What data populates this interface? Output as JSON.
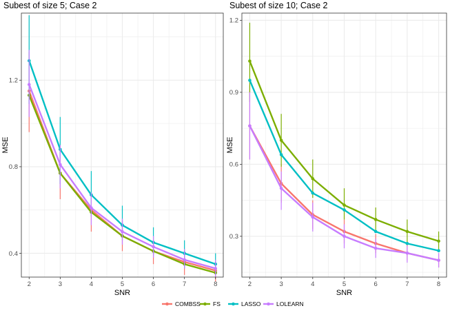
{
  "chart_data": [
    {
      "type": "line",
      "title": "Subest of size 5; Case 2",
      "xlabel": "SNR",
      "ylabel": "MSE",
      "x": [
        2,
        3,
        4,
        5,
        6,
        7,
        8
      ],
      "xlim": [
        1.75,
        8.25
      ],
      "ylim": [
        0.29,
        1.51
      ],
      "yticks": [
        0.4,
        0.8,
        1.2
      ],
      "ytick_labels": [
        "0.4",
        "0.8",
        "1.2"
      ],
      "grid": true,
      "series": [
        {
          "name": "COMBSS",
          "values": [
            1.15,
            0.77,
            0.6,
            0.48,
            0.41,
            0.36,
            0.32
          ],
          "err_low": [
            0.96,
            0.65,
            0.5,
            0.41,
            0.35,
            0.3,
            0.27
          ],
          "err_high": [
            1.33,
            0.88,
            0.68,
            0.55,
            0.46,
            0.41,
            0.36
          ]
        },
        {
          "name": "FS",
          "values": [
            1.13,
            0.77,
            0.59,
            0.48,
            0.41,
            0.35,
            0.31
          ],
          "err_low": [
            1.13,
            0.77,
            0.59,
            0.48,
            0.41,
            0.35,
            0.31
          ],
          "err_high": [
            1.13,
            0.77,
            0.59,
            0.48,
            0.41,
            0.35,
            0.31
          ]
        },
        {
          "name": "LASSO",
          "values": [
            1.29,
            0.88,
            0.67,
            0.53,
            0.45,
            0.4,
            0.35
          ],
          "err_low": [
            1.09,
            0.72,
            0.57,
            0.46,
            0.39,
            0.33,
            0.3
          ],
          "err_high": [
            1.5,
            1.03,
            0.78,
            0.62,
            0.52,
            0.46,
            0.4
          ]
        },
        {
          "name": "LOLEARN",
          "values": [
            1.18,
            0.81,
            0.61,
            0.5,
            0.43,
            0.37,
            0.33
          ],
          "err_low": [
            1.03,
            0.7,
            0.53,
            0.44,
            0.38,
            0.33,
            0.29
          ],
          "err_high": [
            1.34,
            0.9,
            0.68,
            0.56,
            0.48,
            0.42,
            0.37
          ]
        }
      ]
    },
    {
      "type": "line",
      "title": "Subest of size 10; Case 2",
      "xlabel": "SNR",
      "ylabel": "MSE",
      "x": [
        2,
        3,
        4,
        5,
        6,
        7,
        8
      ],
      "xlim": [
        1.75,
        8.25
      ],
      "ylim": [
        0.13,
        1.23
      ],
      "yticks": [
        0.3,
        0.6,
        0.9,
        1.2
      ],
      "ytick_labels": [
        "0.3",
        "0.6",
        "0.9",
        "1.2"
      ],
      "grid": true,
      "series": [
        {
          "name": "COMBSS",
          "values": [
            0.76,
            0.52,
            0.39,
            0.32,
            0.27,
            0.23,
            0.2
          ],
          "err_low": [
            0.62,
            0.44,
            0.33,
            0.27,
            0.23,
            0.2,
            0.17
          ],
          "err_high": [
            0.93,
            0.6,
            0.45,
            0.37,
            0.31,
            0.27,
            0.23
          ]
        },
        {
          "name": "FS",
          "values": [
            1.03,
            0.7,
            0.54,
            0.43,
            0.37,
            0.32,
            0.28
          ],
          "err_low": [
            0.86,
            0.59,
            0.46,
            0.37,
            0.32,
            0.27,
            0.24
          ],
          "err_high": [
            1.19,
            0.81,
            0.62,
            0.5,
            0.42,
            0.37,
            0.32
          ]
        },
        {
          "name": "LASSO",
          "values": [
            0.95,
            0.64,
            0.48,
            0.41,
            0.32,
            0.27,
            0.24
          ],
          "err_low": [
            0.95,
            0.64,
            0.48,
            0.41,
            0.32,
            0.27,
            0.24
          ],
          "err_high": [
            0.95,
            0.64,
            0.48,
            0.41,
            0.32,
            0.27,
            0.24
          ]
        },
        {
          "name": "LOLEARN",
          "values": [
            0.76,
            0.5,
            0.38,
            0.3,
            0.25,
            0.23,
            0.2
          ],
          "err_low": [
            0.62,
            0.41,
            0.32,
            0.25,
            0.21,
            0.19,
            0.17
          ],
          "err_high": [
            0.9,
            0.57,
            0.44,
            0.35,
            0.29,
            0.26,
            0.23
          ]
        }
      ]
    }
  ],
  "legend": {
    "position": "bottom",
    "items": [
      {
        "name": "COMBSS",
        "color": "#f8766d"
      },
      {
        "name": "FS",
        "color": "#7cae00"
      },
      {
        "name": "LASSO",
        "color": "#00bfc4"
      },
      {
        "name": "LOLEARN",
        "color": "#c77cff"
      }
    ]
  },
  "colors": {
    "COMBSS": "#f8766d",
    "FS": "#7cae00",
    "LASSO": "#00bfc4",
    "LOLEARN": "#c77cff",
    "grid": "#ebebeb",
    "panel_border": "#333333"
  }
}
